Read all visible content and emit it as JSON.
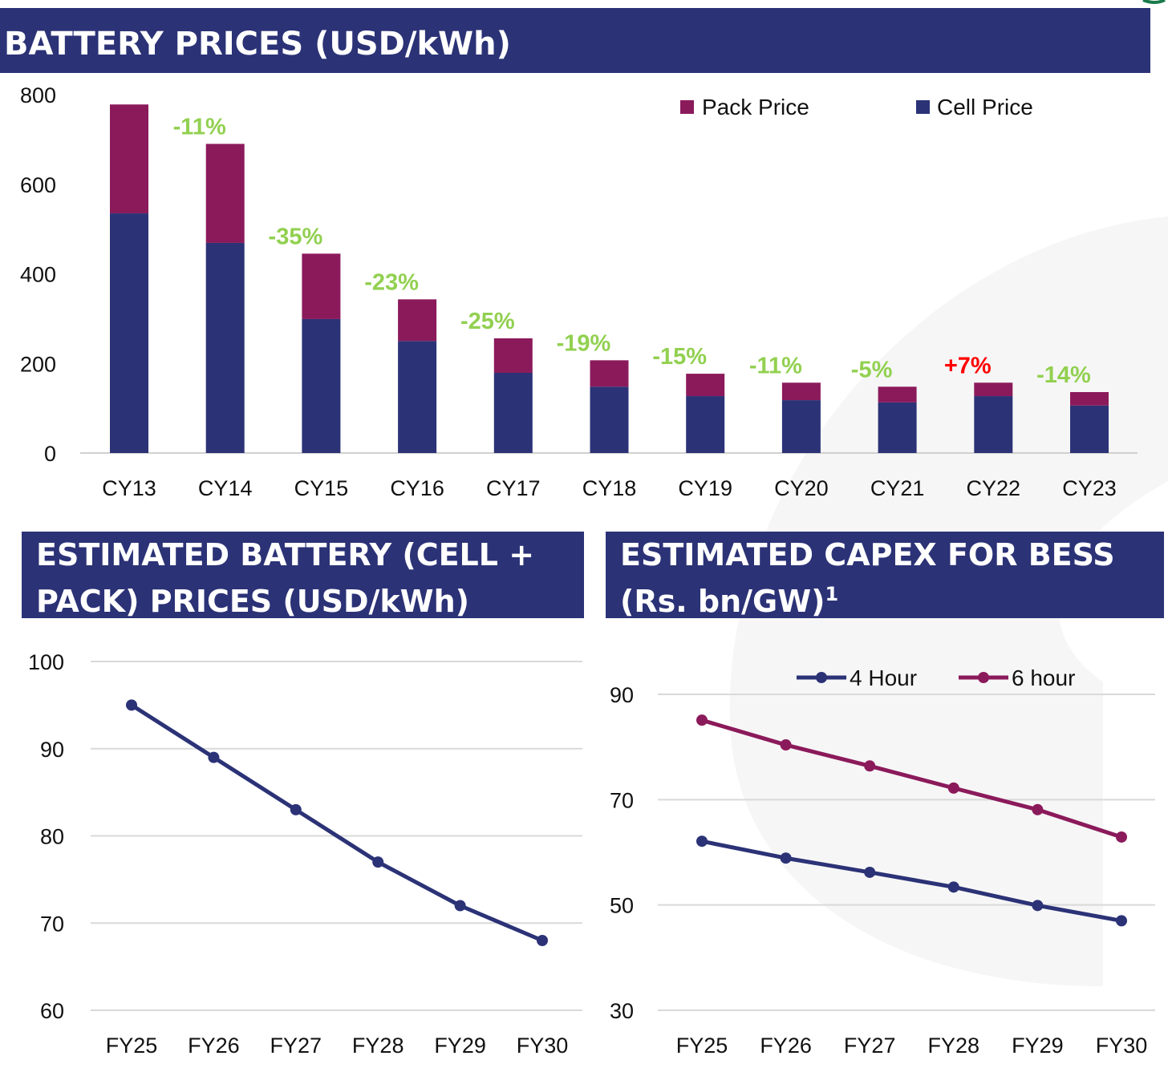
{
  "colors": {
    "navy": "#2B3276",
    "maroon": "#8B1A5B",
    "green": "#92D050",
    "red": "#FF0000",
    "grid": "#D9D9D9"
  },
  "chart_data": [
    {
      "type": "bar",
      "stacked": true,
      "title": "BATTERY PRICES (USD/kWh)",
      "categories": [
        "CY13",
        "CY14",
        "CY15",
        "CY16",
        "CY17",
        "CY18",
        "CY19",
        "CY20",
        "CY21",
        "CY22",
        "CY23"
      ],
      "series": [
        {
          "name": "Cell Price",
          "values": [
            535,
            469,
            299,
            250,
            179,
            148,
            127,
            118,
            113,
            127,
            106
          ]
        },
        {
          "name": "Pack Price",
          "values": [
            243,
            221,
            146,
            93,
            77,
            59,
            50,
            39,
            35,
            30,
            30
          ]
        }
      ],
      "change_labels": [
        "",
        "-11%",
        "-35%",
        "-23%",
        "-25%",
        "-19%",
        "-15%",
        "-11%",
        "-5%",
        "+7%",
        "-14%"
      ],
      "yticks": [
        "0",
        "200",
        "400",
        "600",
        "800"
      ],
      "ylim": [
        0,
        800
      ],
      "legend": "top-right",
      "legend_entries": [
        "Pack Price",
        "Cell Price"
      ],
      "grid": false
    },
    {
      "type": "line",
      "title_lines": [
        "ESTIMATED BATTERY (CELL +",
        "PACK) PRICES (USD/kWh)"
      ],
      "categories": [
        "FY25",
        "FY26",
        "FY27",
        "FY28",
        "FY29",
        "FY30"
      ],
      "series": [
        {
          "name": "Price",
          "values": [
            95,
            89,
            83,
            77,
            72,
            68
          ]
        }
      ],
      "yticks": [
        "60",
        "70",
        "80",
        "90",
        "100"
      ],
      "ylim": [
        60,
        100
      ],
      "grid": true
    },
    {
      "type": "line",
      "title_lines": [
        "ESTIMATED CAPEX FOR BESS",
        "(Rs. bn/GW)",
        "1"
      ],
      "categories": [
        "FY25",
        "FY26",
        "FY27",
        "FY28",
        "FY29",
        "FY30"
      ],
      "series": [
        {
          "name": "4 Hour",
          "values": [
            62.1,
            58.9,
            56.2,
            53.4,
            49.9,
            47.0
          ]
        },
        {
          "name": "6 hour",
          "values": [
            85.1,
            80.4,
            76.4,
            72.2,
            68.1,
            62.9
          ]
        }
      ],
      "yticks": [
        "30",
        "50",
        "70",
        "90"
      ],
      "ylim": [
        30,
        90
      ],
      "legend": "top",
      "grid": true
    }
  ]
}
